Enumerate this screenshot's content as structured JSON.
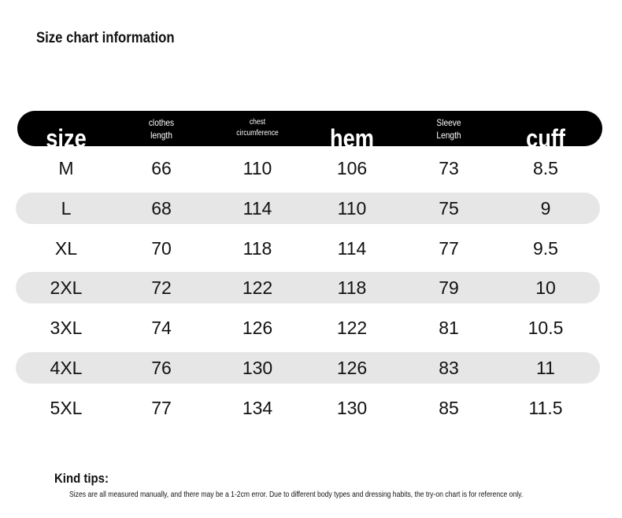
{
  "title": "Size chart information",
  "table": {
    "header": [
      [
        "size"
      ],
      [
        "clothes",
        "length"
      ],
      [
        "chest",
        "circumference"
      ],
      [
        "hem"
      ],
      [
        "Sleeve",
        "Length"
      ],
      [
        "cuff"
      ]
    ],
    "rows": [
      [
        "M",
        66,
        110,
        106,
        73,
        8.5
      ],
      [
        "L",
        68,
        114,
        110,
        75,
        9
      ],
      [
        "XL",
        70,
        118,
        114,
        77,
        9.5
      ],
      [
        "2XL",
        72,
        122,
        118,
        79,
        10
      ],
      [
        "3XL",
        74,
        126,
        122,
        81,
        10.5
      ],
      [
        "4XL",
        76,
        130,
        126,
        83,
        11
      ],
      [
        "5XL",
        77,
        134,
        130,
        85,
        11.5
      ]
    ]
  },
  "tips": {
    "heading": "Kind tips:",
    "text": "Sizes are all measured manually, and there may be a 1-2cm error. Due to different body types and dressing habits, the try-on chart is for reference only."
  }
}
